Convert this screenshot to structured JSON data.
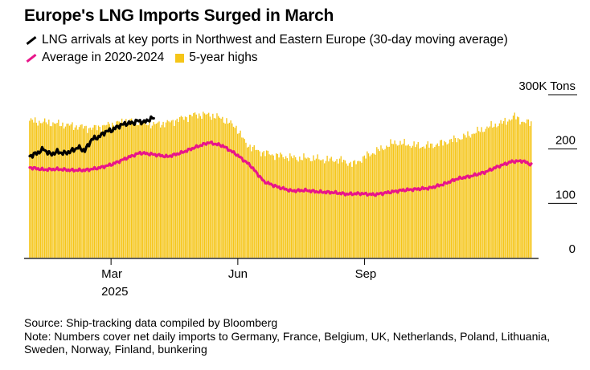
{
  "title": "Europe's LNG Imports Surged in March",
  "legend": [
    {
      "label": "LNG arrivals at key ports in Northwest and Eastern Europe (30-day moving average)",
      "color": "#000000",
      "icon": "line-swatch"
    },
    {
      "label": "Average in 2020-2024",
      "color": "#e8158a",
      "icon": "line-swatch"
    },
    {
      "label": "5-year highs",
      "color": "#f5c518",
      "icon": "box-swatch"
    }
  ],
  "footer": {
    "source": "Source: Ship-tracking data compiled by Bloomberg",
    "note_line1": "Note: Numbers cover net daily imports to Germany, France, Belgium, UK, Netherlands, Poland, Lithuania,",
    "note_line2": "Sweden, Norway, Finland, bunkering"
  },
  "chart_data": {
    "type": "bar",
    "unit": "Tons",
    "ylim": [
      0,
      300000
    ],
    "y_ticks": [
      {
        "value": 0,
        "label": "0"
      },
      {
        "value": 100000,
        "label": "100"
      },
      {
        "value": 200000,
        "label": "200"
      },
      {
        "value": 300000,
        "label": "300K Tons"
      }
    ],
    "x_ticks": [
      {
        "day": 59,
        "label": "Mar",
        "sublabel": "2025"
      },
      {
        "day": 151,
        "label": "Jun",
        "sublabel": ""
      },
      {
        "day": 243,
        "label": "Sep",
        "sublabel": ""
      }
    ],
    "days_in_year": 365,
    "series": [
      {
        "name": "5-year highs",
        "kind": "bar",
        "color": "#f5c518",
        "points": [
          [
            0,
            252000
          ],
          [
            15,
            248000
          ],
          [
            30,
            243000
          ],
          [
            45,
            238000
          ],
          [
            59,
            245000
          ],
          [
            70,
            252000
          ],
          [
            80,
            250000
          ],
          [
            90,
            245000
          ],
          [
            100,
            248000
          ],
          [
            110,
            256000
          ],
          [
            120,
            263000
          ],
          [
            130,
            263000
          ],
          [
            140,
            256000
          ],
          [
            150,
            240000
          ],
          [
            157,
            210000
          ],
          [
            165,
            197000
          ],
          [
            175,
            190000
          ],
          [
            185,
            186000
          ],
          [
            195,
            183000
          ],
          [
            205,
            183000
          ],
          [
            215,
            180000
          ],
          [
            225,
            180000
          ],
          [
            235,
            172000
          ],
          [
            245,
            188000
          ],
          [
            255,
            200000
          ],
          [
            265,
            212000
          ],
          [
            275,
            208000
          ],
          [
            285,
            205000
          ],
          [
            295,
            208000
          ],
          [
            305,
            215000
          ],
          [
            315,
            222000
          ],
          [
            325,
            232000
          ],
          [
            335,
            242000
          ],
          [
            345,
            250000
          ],
          [
            352,
            260000
          ],
          [
            358,
            250000
          ],
          [
            364,
            248000
          ]
        ]
      },
      {
        "name": "Average in 2020-2024",
        "kind": "line",
        "color": "#e8158a",
        "points": [
          [
            0,
            166000
          ],
          [
            10,
            162000
          ],
          [
            20,
            163000
          ],
          [
            30,
            161000
          ],
          [
            40,
            161000
          ],
          [
            50,
            165000
          ],
          [
            60,
            172000
          ],
          [
            70,
            183000
          ],
          [
            80,
            193000
          ],
          [
            90,
            190000
          ],
          [
            100,
            186000
          ],
          [
            110,
            193000
          ],
          [
            120,
            203000
          ],
          [
            130,
            212000
          ],
          [
            140,
            206000
          ],
          [
            150,
            190000
          ],
          [
            160,
            170000
          ],
          [
            170,
            140000
          ],
          [
            180,
            130000
          ],
          [
            190,
            123000
          ],
          [
            200,
            124000
          ],
          [
            210,
            121000
          ],
          [
            220,
            120000
          ],
          [
            230,
            117000
          ],
          [
            240,
            118000
          ],
          [
            250,
            116000
          ],
          [
            260,
            120000
          ],
          [
            270,
            124000
          ],
          [
            280,
            126000
          ],
          [
            290,
            128000
          ],
          [
            300,
            135000
          ],
          [
            310,
            145000
          ],
          [
            320,
            150000
          ],
          [
            330,
            157000
          ],
          [
            340,
            168000
          ],
          [
            350,
            177000
          ],
          [
            358,
            178000
          ],
          [
            364,
            171000
          ]
        ]
      },
      {
        "name": "LNG arrivals at key ports in Northwest and Eastern Europe (30-day moving average)",
        "kind": "line",
        "color": "#000000",
        "points": [
          [
            0,
            187000
          ],
          [
            5,
            192000
          ],
          [
            10,
            200000
          ],
          [
            15,
            190000
          ],
          [
            20,
            195000
          ],
          [
            25,
            192000
          ],
          [
            30,
            196000
          ],
          [
            35,
            203000
          ],
          [
            40,
            197000
          ],
          [
            45,
            218000
          ],
          [
            50,
            222000
          ],
          [
            55,
            232000
          ],
          [
            60,
            235000
          ],
          [
            65,
            243000
          ],
          [
            70,
            247000
          ],
          [
            75,
            248000
          ],
          [
            78,
            252000
          ],
          [
            83,
            249000
          ],
          [
            87,
            255000
          ],
          [
            90,
            257000
          ]
        ]
      }
    ]
  }
}
